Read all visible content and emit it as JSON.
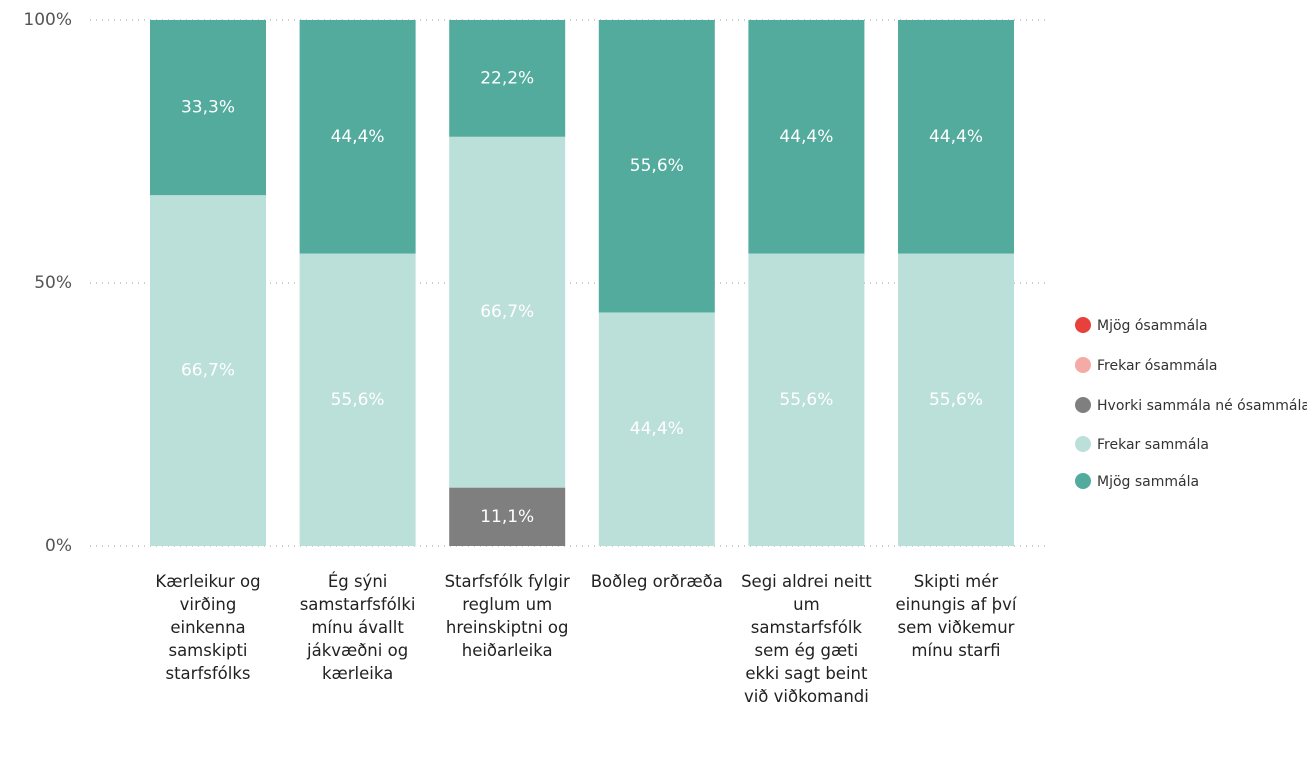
{
  "chart_data": {
    "type": "stacked_bar_100",
    "categories": [
      "Kærleikur og virðing einkenna samskipti starfsfólks",
      "Ég sýni samstarfsfólki mínu ávallt jákvæðni og kærleika",
      "Starfsfólk fylgir reglum um hreinskiptni og heiðarleika",
      "Boðleg orðræða",
      "Segi aldrei neitt um samstarfsfólk sem ég gæti ekki sagt beint við viðkomandi",
      "Skipti mér einungis af því sem viðkemur mínu starfi"
    ],
    "series": [
      {
        "name": "Mjög ósammála",
        "color": "#e8413c",
        "values": [
          0,
          0,
          0,
          0,
          0,
          0
        ],
        "value_labels": [
          null,
          null,
          null,
          null,
          null,
          null
        ]
      },
      {
        "name": "Frekar ósammála",
        "color": "#f4aaa5",
        "values": [
          0,
          0,
          0,
          0,
          0,
          0
        ],
        "value_labels": [
          null,
          null,
          null,
          null,
          null,
          null
        ]
      },
      {
        "name": "Hvorki sammála né ósammála",
        "color": "#7f7f7f",
        "values": [
          0,
          0,
          11.1,
          0,
          0,
          0
        ],
        "value_labels": [
          null,
          null,
          "11,1%",
          null,
          null,
          null
        ]
      },
      {
        "name": "Frekar sammála",
        "color": "#bbe0d9",
        "values": [
          66.7,
          55.6,
          66.7,
          44.4,
          55.6,
          55.6
        ],
        "value_labels": [
          "66,7%",
          "55,6%",
          "66,7%",
          "44,4%",
          "55,6%",
          "55,6%"
        ]
      },
      {
        "name": "Mjög sammála",
        "color": "#52ab9c",
        "values": [
          33.3,
          44.4,
          22.2,
          55.6,
          44.4,
          44.4
        ],
        "value_labels": [
          "33,3%",
          "44,4%",
          "22,2%",
          "55,6%",
          "44,4%",
          "44,4%"
        ]
      }
    ],
    "ylim": [
      0,
      100
    ],
    "yticks": [
      {
        "value": 0,
        "label": "0%"
      },
      {
        "value": 50,
        "label": "50%"
      },
      {
        "value": 100,
        "label": "100%"
      }
    ],
    "grid": true,
    "legend": "right"
  }
}
